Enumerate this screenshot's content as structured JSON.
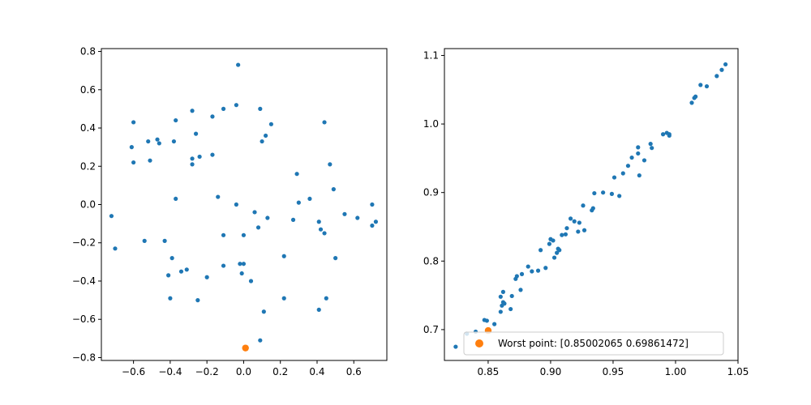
{
  "chart_data": [
    {
      "type": "scatter",
      "xlim": [
        -0.775,
        0.78
      ],
      "ylim": [
        -0.815,
        0.815
      ],
      "xticks": [
        -0.6,
        -0.4,
        -0.2,
        0.0,
        0.2,
        0.4,
        0.6
      ],
      "xtick_labels": [
        "−0.6",
        "−0.4",
        "−0.2",
        "0.0",
        "0.2",
        "0.4",
        "0.6"
      ],
      "yticks": [
        -0.8,
        -0.6,
        -0.4,
        -0.2,
        0.0,
        0.2,
        0.4,
        0.6,
        0.8
      ],
      "ytick_labels": [
        "−0.8",
        "−0.6",
        "−0.4",
        "−0.2",
        "0.0",
        "0.2",
        "0.4",
        "0.6",
        "0.8"
      ],
      "grid": false,
      "series": [
        {
          "color": "#1f77b4",
          "points": [
            [
              -0.03,
              0.73
            ],
            [
              -0.04,
              0.52
            ],
            [
              -0.11,
              0.5
            ],
            [
              -0.17,
              0.46
            ],
            [
              -0.28,
              0.49
            ],
            [
              -0.37,
              0.44
            ],
            [
              -0.6,
              0.43
            ],
            [
              -0.61,
              0.3
            ],
            [
              -0.6,
              0.22
            ],
            [
              -0.52,
              0.33
            ],
            [
              -0.47,
              0.34
            ],
            [
              -0.46,
              0.32
            ],
            [
              -0.51,
              0.23
            ],
            [
              -0.38,
              0.33
            ],
            [
              -0.26,
              0.37
            ],
            [
              -0.28,
              0.24
            ],
            [
              -0.28,
              0.21
            ],
            [
              -0.24,
              0.25
            ],
            [
              -0.17,
              0.26
            ],
            [
              0.09,
              0.5
            ],
            [
              0.15,
              0.42
            ],
            [
              0.12,
              0.36
            ],
            [
              0.1,
              0.33
            ],
            [
              0.44,
              0.43
            ],
            [
              0.29,
              0.16
            ],
            [
              0.47,
              0.21
            ],
            [
              0.49,
              0.08
            ],
            [
              0.3,
              0.01
            ],
            [
              0.36,
              0.03
            ],
            [
              -0.14,
              0.04
            ],
            [
              -0.37,
              0.03
            ],
            [
              -0.04,
              0.0
            ],
            [
              0.06,
              -0.04
            ],
            [
              0.13,
              -0.07
            ],
            [
              0.27,
              -0.08
            ],
            [
              0.41,
              -0.09
            ],
            [
              0.55,
              -0.05
            ],
            [
              0.62,
              -0.07
            ],
            [
              0.7,
              0.0
            ],
            [
              0.72,
              -0.09
            ],
            [
              0.7,
              -0.11
            ],
            [
              -0.72,
              -0.06
            ],
            [
              -0.7,
              -0.23
            ],
            [
              -0.54,
              -0.19
            ],
            [
              -0.43,
              -0.19
            ],
            [
              -0.11,
              -0.16
            ],
            [
              0.0,
              -0.16
            ],
            [
              0.08,
              -0.12
            ],
            [
              0.42,
              -0.13
            ],
            [
              0.44,
              -0.15
            ],
            [
              -0.39,
              -0.28
            ],
            [
              -0.41,
              -0.37
            ],
            [
              -0.34,
              -0.35
            ],
            [
              -0.31,
              -0.34
            ],
            [
              -0.11,
              -0.32
            ],
            [
              -0.02,
              -0.31
            ],
            [
              0.0,
              -0.31
            ],
            [
              -0.01,
              -0.36
            ],
            [
              0.22,
              -0.27
            ],
            [
              0.5,
              -0.28
            ],
            [
              -0.2,
              -0.38
            ],
            [
              0.04,
              -0.4
            ],
            [
              -0.4,
              -0.49
            ],
            [
              -0.25,
              -0.5
            ],
            [
              0.22,
              -0.49
            ],
            [
              0.45,
              -0.49
            ],
            [
              0.11,
              -0.56
            ],
            [
              0.41,
              -0.55
            ],
            [
              0.09,
              -0.71
            ]
          ]
        },
        {
          "color": "#ff7f0e",
          "points": [
            [
              0.01,
              -0.75
            ]
          ]
        }
      ]
    },
    {
      "type": "scatter",
      "xlim": [
        0.815,
        1.05
      ],
      "ylim": [
        0.655,
        1.11
      ],
      "xticks": [
        0.85,
        0.9,
        0.95,
        1.0,
        1.05
      ],
      "xtick_labels": [
        "0.85",
        "0.90",
        "0.95",
        "1.00",
        "1.05"
      ],
      "yticks": [
        0.7,
        0.8,
        0.9,
        1.0,
        1.1
      ],
      "ytick_labels": [
        "0.7",
        "0.8",
        "0.9",
        "1.0",
        "1.1"
      ],
      "grid": false,
      "legend": {
        "placement": "lower right",
        "entries": [
          "Worst point: [0.85002065 0.69861472]"
        ]
      },
      "series": [
        {
          "color": "#1f77b4",
          "points": [
            [
              0.824,
              0.675
            ],
            [
              0.833,
              0.694
            ],
            [
              0.84,
              0.697
            ],
            [
              0.847,
              0.714
            ],
            [
              0.849,
              0.713
            ],
            [
              0.855,
              0.708
            ],
            [
              0.86,
              0.726
            ],
            [
              0.861,
              0.735
            ],
            [
              0.862,
              0.74
            ],
            [
              0.863,
              0.738
            ],
            [
              0.86,
              0.748
            ],
            [
              0.862,
              0.755
            ],
            [
              0.868,
              0.73
            ],
            [
              0.869,
              0.749
            ],
            [
              0.872,
              0.774
            ],
            [
              0.873,
              0.778
            ],
            [
              0.876,
              0.758
            ],
            [
              0.877,
              0.781
            ],
            [
              0.882,
              0.792
            ],
            [
              0.885,
              0.785
            ],
            [
              0.89,
              0.786
            ],
            [
              0.892,
              0.816
            ],
            [
              0.896,
              0.79
            ],
            [
              0.899,
              0.825
            ],
            [
              0.9,
              0.832
            ],
            [
              0.902,
              0.83
            ],
            [
              0.903,
              0.805
            ],
            [
              0.905,
              0.812
            ],
            [
              0.906,
              0.818
            ],
            [
              0.907,
              0.816
            ],
            [
              0.909,
              0.838
            ],
            [
              0.912,
              0.839
            ],
            [
              0.913,
              0.848
            ],
            [
              0.916,
              0.862
            ],
            [
              0.919,
              0.858
            ],
            [
              0.922,
              0.843
            ],
            [
              0.923,
              0.856
            ],
            [
              0.926,
              0.881
            ],
            [
              0.927,
              0.845
            ],
            [
              0.933,
              0.874
            ],
            [
              0.934,
              0.877
            ],
            [
              0.935,
              0.899
            ],
            [
              0.942,
              0.9
            ],
            [
              0.949,
              0.898
            ],
            [
              0.951,
              0.922
            ],
            [
              0.955,
              0.895
            ],
            [
              0.958,
              0.928
            ],
            [
              0.962,
              0.939
            ],
            [
              0.965,
              0.951
            ],
            [
              0.97,
              0.957
            ],
            [
              0.97,
              0.966
            ],
            [
              0.971,
              0.925
            ],
            [
              0.975,
              0.947
            ],
            [
              0.98,
              0.971
            ],
            [
              0.981,
              0.965
            ],
            [
              0.99,
              0.985
            ],
            [
              0.993,
              0.987
            ],
            [
              0.995,
              0.983
            ],
            [
              0.995,
              0.985
            ],
            [
              1.013,
              1.031
            ],
            [
              1.015,
              1.038
            ],
            [
              1.016,
              1.04
            ],
            [
              1.02,
              1.057
            ],
            [
              1.025,
              1.055
            ],
            [
              1.033,
              1.07
            ],
            [
              1.037,
              1.079
            ],
            [
              1.04,
              1.087
            ]
          ]
        },
        {
          "name": "Worst point: [0.85002065 0.69861472]",
          "color": "#ff7f0e",
          "points": [
            [
              0.85002065,
              0.69861472
            ]
          ]
        }
      ]
    }
  ]
}
